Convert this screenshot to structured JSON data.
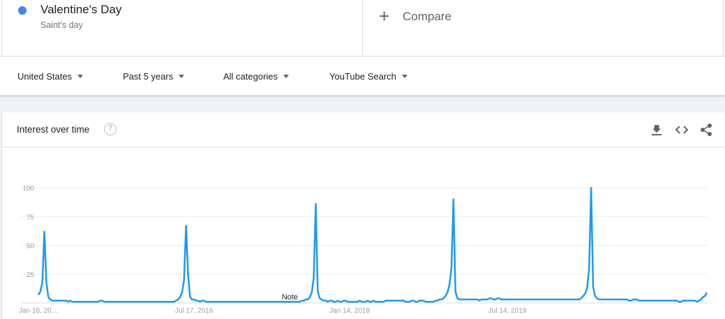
{
  "search_terms": [
    {
      "name": "Valentine's Day",
      "type": "Saint's day",
      "color": "#4285f4"
    }
  ],
  "compare": {
    "label": "Compare",
    "icon": "plus-icon"
  },
  "filters": {
    "region": "United States",
    "time_range": "Past 5 years",
    "category": "All categories",
    "property": "YouTube Search"
  },
  "widget": {
    "title": "Interest over time",
    "help_icon": "help-icon",
    "tools": [
      "download-icon",
      "embed-icon",
      "share-icon"
    ]
  },
  "chart_data": {
    "type": "line",
    "title": "Interest over time",
    "xlabel": "",
    "ylabel": "",
    "ylim": [
      0,
      100
    ],
    "y_ticks": [
      25,
      50,
      75,
      100
    ],
    "grid": true,
    "x_tick_labels": [
      "Jan 18, 20…",
      "Jul 17, 2016",
      "Jan 14, 2018",
      "Jul 14, 2019"
    ],
    "note_label": "Note",
    "series": [
      {
        "color": "#1a9af3",
        "x_start": "2015-01-18",
        "interval": "week",
        "values": [
          7,
          10,
          18,
          62,
          18,
          5,
          3,
          2,
          2,
          2,
          2,
          2,
          2,
          2,
          2,
          1,
          2,
          1,
          1,
          1,
          1,
          1,
          1,
          1,
          1,
          1,
          1,
          1,
          1,
          1,
          1,
          2,
          2,
          1,
          1,
          1,
          1,
          1,
          1,
          1,
          1,
          1,
          1,
          1,
          1,
          1,
          1,
          1,
          1,
          1,
          1,
          1,
          1,
          1,
          1,
          1,
          1,
          1,
          1,
          1,
          1,
          1,
          1,
          1,
          1,
          1,
          1,
          1,
          1,
          2,
          3,
          5,
          9,
          20,
          67,
          25,
          5,
          3,
          3,
          2,
          2,
          1,
          2,
          2,
          1,
          1,
          1,
          1,
          1,
          1,
          1,
          1,
          1,
          1,
          1,
          1,
          1,
          1,
          1,
          1,
          1,
          1,
          1,
          1,
          1,
          1,
          1,
          1,
          1,
          1,
          1,
          1,
          1,
          1,
          1,
          1,
          1,
          1,
          1,
          1,
          1,
          1,
          1,
          1,
          1,
          1,
          1,
          1,
          1,
          1,
          1,
          1,
          2,
          2,
          3,
          3,
          5,
          9,
          22,
          86,
          10,
          4,
          3,
          2,
          2,
          1,
          2,
          2,
          1,
          1,
          2,
          1,
          1,
          2,
          2,
          1,
          1,
          1,
          1,
          1,
          1,
          2,
          1,
          1,
          1,
          2,
          1,
          1,
          2,
          1,
          1,
          1,
          1,
          1,
          2,
          2,
          2,
          2,
          2,
          2,
          2,
          2,
          2,
          2,
          1,
          1,
          1,
          2,
          2,
          1,
          1,
          2,
          2,
          2,
          1,
          1,
          1,
          1,
          1,
          2,
          2,
          3,
          3,
          4,
          6,
          9,
          16,
          30,
          90,
          10,
          4,
          3,
          3,
          3,
          3,
          3,
          3,
          3,
          3,
          3,
          3,
          2,
          3,
          3,
          3,
          3,
          4,
          4,
          3,
          3,
          4,
          4,
          3,
          3,
          3,
          3,
          3,
          3,
          3,
          3,
          3,
          3,
          3,
          3,
          3,
          3,
          3,
          3,
          3,
          3,
          3,
          3,
          3,
          3,
          3,
          3,
          3,
          3,
          3,
          3,
          3,
          3,
          3,
          3,
          3,
          3,
          3,
          3,
          3,
          3,
          3,
          3,
          4,
          6,
          8,
          13,
          30,
          100,
          14,
          6,
          4,
          3,
          3,
          3,
          3,
          3,
          3,
          3,
          3,
          3,
          3,
          3,
          3,
          3,
          3,
          3,
          2,
          2,
          3,
          3,
          3,
          2,
          2,
          2,
          2,
          2,
          2,
          2,
          2,
          2,
          2,
          2,
          2,
          2,
          2,
          2,
          2,
          2,
          2,
          2,
          2,
          1,
          1,
          2,
          2,
          2,
          2,
          2,
          2,
          2,
          1,
          2,
          3,
          5,
          6,
          9
        ]
      }
    ]
  }
}
